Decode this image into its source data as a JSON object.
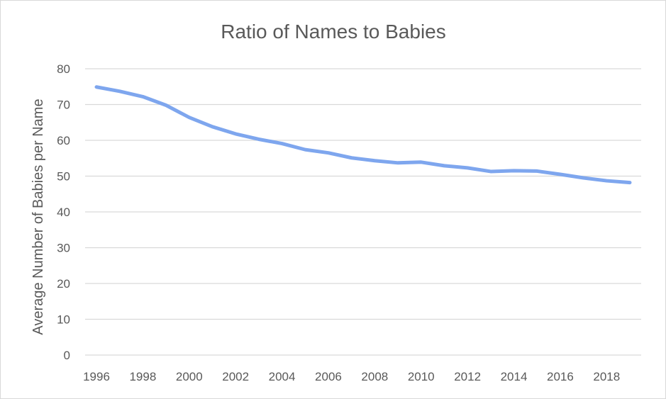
{
  "chart_data": {
    "type": "line",
    "title": "Ratio of Names to Babies",
    "xlabel": "",
    "ylabel": "Average Number of Babies per Name",
    "x": [
      1996,
      1997,
      1998,
      1999,
      2000,
      2001,
      2002,
      2003,
      2004,
      2005,
      2006,
      2007,
      2008,
      2009,
      2010,
      2011,
      2012,
      2013,
      2014,
      2015,
      2016,
      2017,
      2018,
      2019
    ],
    "series": [
      {
        "name": "",
        "values": [
          74.9,
          73.7,
          72.2,
          69.8,
          66.4,
          63.8,
          61.8,
          60.3,
          59.1,
          57.4,
          56.5,
          55.1,
          54.3,
          53.7,
          53.9,
          52.9,
          52.3,
          51.3,
          51.5,
          51.4,
          50.5,
          49.5,
          48.7,
          48.2
        ],
        "color": "#7ea6ee"
      }
    ],
    "xticks": [
      "1996",
      "1998",
      "2000",
      "2002",
      "2004",
      "2006",
      "2008",
      "2010",
      "2012",
      "2014",
      "2016",
      "2018"
    ],
    "yticks": [
      "0",
      "10",
      "20",
      "30",
      "40",
      "50",
      "60",
      "70",
      "80"
    ],
    "ylim": [
      0,
      80
    ],
    "xlim": [
      1996,
      2019
    ],
    "grid": true,
    "legend": "none",
    "colors": {
      "gridline": "#d9d9d9",
      "text": "#595959",
      "line": "#7ea6ee"
    }
  }
}
